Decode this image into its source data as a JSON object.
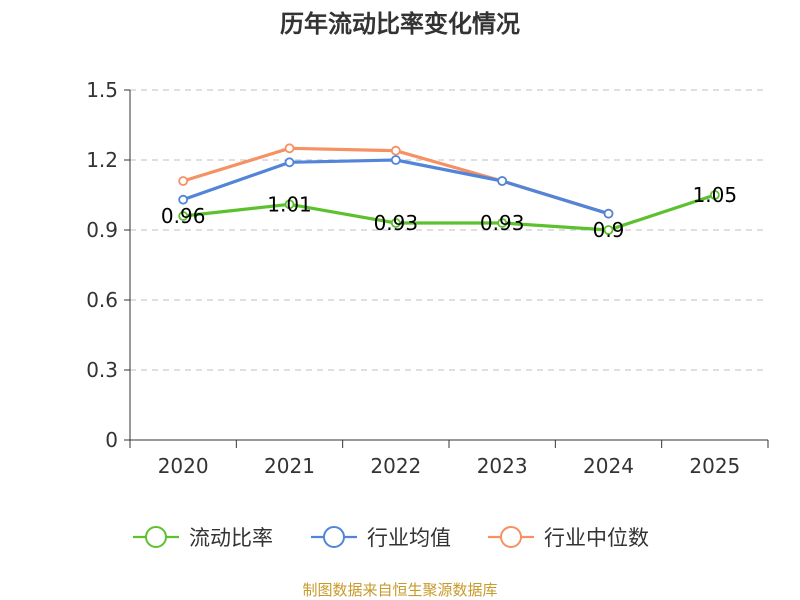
{
  "chart_data": {
    "type": "line",
    "title": "历年流动比率变化情况",
    "categories": [
      "2020",
      "2021",
      "2022",
      "2023",
      "2024",
      "2025"
    ],
    "ylim": [
      0,
      1.5
    ],
    "yticks": [
      "0",
      "0.3",
      "0.6",
      "0.9",
      "1.2",
      "1.5"
    ],
    "grid": true,
    "legend_position": "bottom",
    "series": [
      {
        "name": "行业中位数",
        "color": "#f59162",
        "values": [
          1.11,
          1.25,
          1.24,
          1.11,
          0.97,
          null
        ],
        "labels": null
      },
      {
        "name": "行业均值",
        "color": "#5285d9",
        "values": [
          1.03,
          1.19,
          1.2,
          1.11,
          0.97,
          null
        ],
        "labels": null
      },
      {
        "name": "流动比率",
        "color": "#5dc12f",
        "values": [
          0.96,
          1.01,
          0.93,
          0.93,
          0.9,
          1.05
        ],
        "labels": [
          "0.96",
          "1.01",
          "0.93",
          "0.93",
          "0.9",
          "1.05"
        ]
      }
    ],
    "legend_order": [
      "流动比率",
      "行业均值",
      "行业中位数"
    ],
    "source": "制图数据来自恒生聚源数据库",
    "source_color": "#c89a2a"
  }
}
